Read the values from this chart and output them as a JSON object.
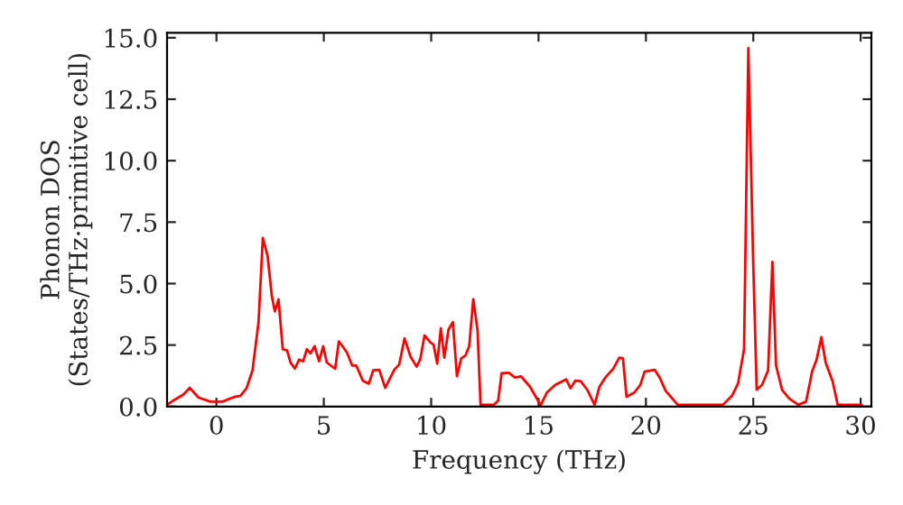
{
  "chart_data": {
    "type": "line",
    "xlabel": "Frequency (THz)",
    "ylabel": "Phonon DOS\n(States/THz·primitive cell)",
    "xlim": [
      -2.3,
      30.5
    ],
    "ylim": [
      0,
      15.2
    ],
    "xticks": [
      0,
      5,
      10,
      15,
      20,
      25,
      30
    ],
    "yticks": [
      {
        "value": 0,
        "label": "0.0"
      },
      {
        "value": 2.5,
        "label": "2.5"
      },
      {
        "value": 5,
        "label": "5.0"
      },
      {
        "value": 7.5,
        "label": "7.5"
      },
      {
        "value": 10,
        "label": "10.0"
      },
      {
        "value": 12.5,
        "label": "12.5"
      },
      {
        "value": 15,
        "label": "15.0"
      }
    ],
    "grid": false,
    "legend": false,
    "marker": "none",
    "line_style": "solid",
    "series": [
      {
        "color": "#ff0000",
        "x": [
          -2.3,
          -1.96,
          -1.54,
          -1.24,
          -0.84,
          -0.28,
          0.28,
          0.84,
          1.12,
          1.4,
          1.68,
          1.96,
          2.16,
          2.38,
          2.58,
          2.72,
          2.89,
          3.09,
          3.29,
          3.45,
          3.65,
          3.85,
          4.04,
          4.21,
          4.38,
          4.57,
          4.78,
          4.97,
          5.14,
          5.53,
          5.7,
          6.07,
          6.32,
          6.51,
          6.82,
          7.1,
          7.3,
          7.58,
          7.86,
          8.28,
          8.51,
          8.76,
          9.04,
          9.32,
          9.49,
          9.69,
          9.97,
          10.11,
          10.28,
          10.45,
          10.61,
          10.81,
          11.01,
          11.2,
          11.4,
          11.6,
          11.77,
          11.96,
          12.16,
          12.3,
          12.92,
          13.12,
          13.28,
          13.62,
          13.9,
          14.18,
          14.6,
          14.89,
          15.1,
          15.39,
          15.78,
          16.29,
          16.49,
          16.71,
          16.96,
          17.27,
          17.61,
          17.84,
          18.11,
          18.48,
          18.76,
          18.93,
          19.1,
          19.46,
          19.74,
          19.94,
          20.41,
          20.64,
          20.92,
          21.48,
          23.59,
          24.01,
          24.29,
          24.57,
          24.77,
          24.99,
          25.16,
          25.41,
          25.69,
          25.89,
          26.06,
          26.34,
          26.68,
          27.1,
          27.46,
          27.74,
          27.95,
          28.17,
          28.37,
          28.7,
          28.93,
          30.05
        ],
        "values": [
          0.07,
          0.27,
          0.49,
          0.76,
          0.37,
          0.2,
          0.2,
          0.39,
          0.44,
          0.74,
          1.47,
          3.43,
          6.86,
          6.13,
          4.49,
          3.87,
          4.36,
          2.33,
          2.28,
          1.79,
          1.54,
          1.91,
          1.84,
          2.33,
          2.16,
          2.45,
          1.84,
          2.45,
          1.79,
          1.54,
          2.65,
          2.21,
          1.67,
          1.67,
          1.05,
          0.93,
          1.47,
          1.49,
          0.76,
          1.49,
          1.71,
          2.77,
          2.03,
          1.62,
          1.91,
          2.89,
          2.6,
          2.52,
          1.74,
          3.18,
          1.99,
          3.14,
          3.43,
          1.23,
          1.96,
          2.08,
          2.45,
          4.36,
          3.09,
          0.07,
          0.07,
          0.24,
          1.35,
          1.37,
          1.18,
          1.23,
          0.81,
          0.37,
          0.05,
          0.57,
          0.88,
          1.1,
          0.74,
          1.05,
          1.03,
          0.68,
          0.07,
          0.81,
          1.18,
          1.54,
          1.99,
          1.96,
          0.39,
          0.57,
          0.88,
          1.42,
          1.49,
          1.18,
          0.64,
          0.07,
          0.07,
          0.44,
          0.93,
          2.33,
          14.58,
          6.08,
          0.68,
          0.88,
          1.47,
          5.88,
          1.67,
          0.68,
          0.32,
          0.07,
          0.2,
          1.42,
          1.91,
          2.82,
          1.79,
          1.01,
          0.07,
          0.07
        ]
      }
    ]
  }
}
